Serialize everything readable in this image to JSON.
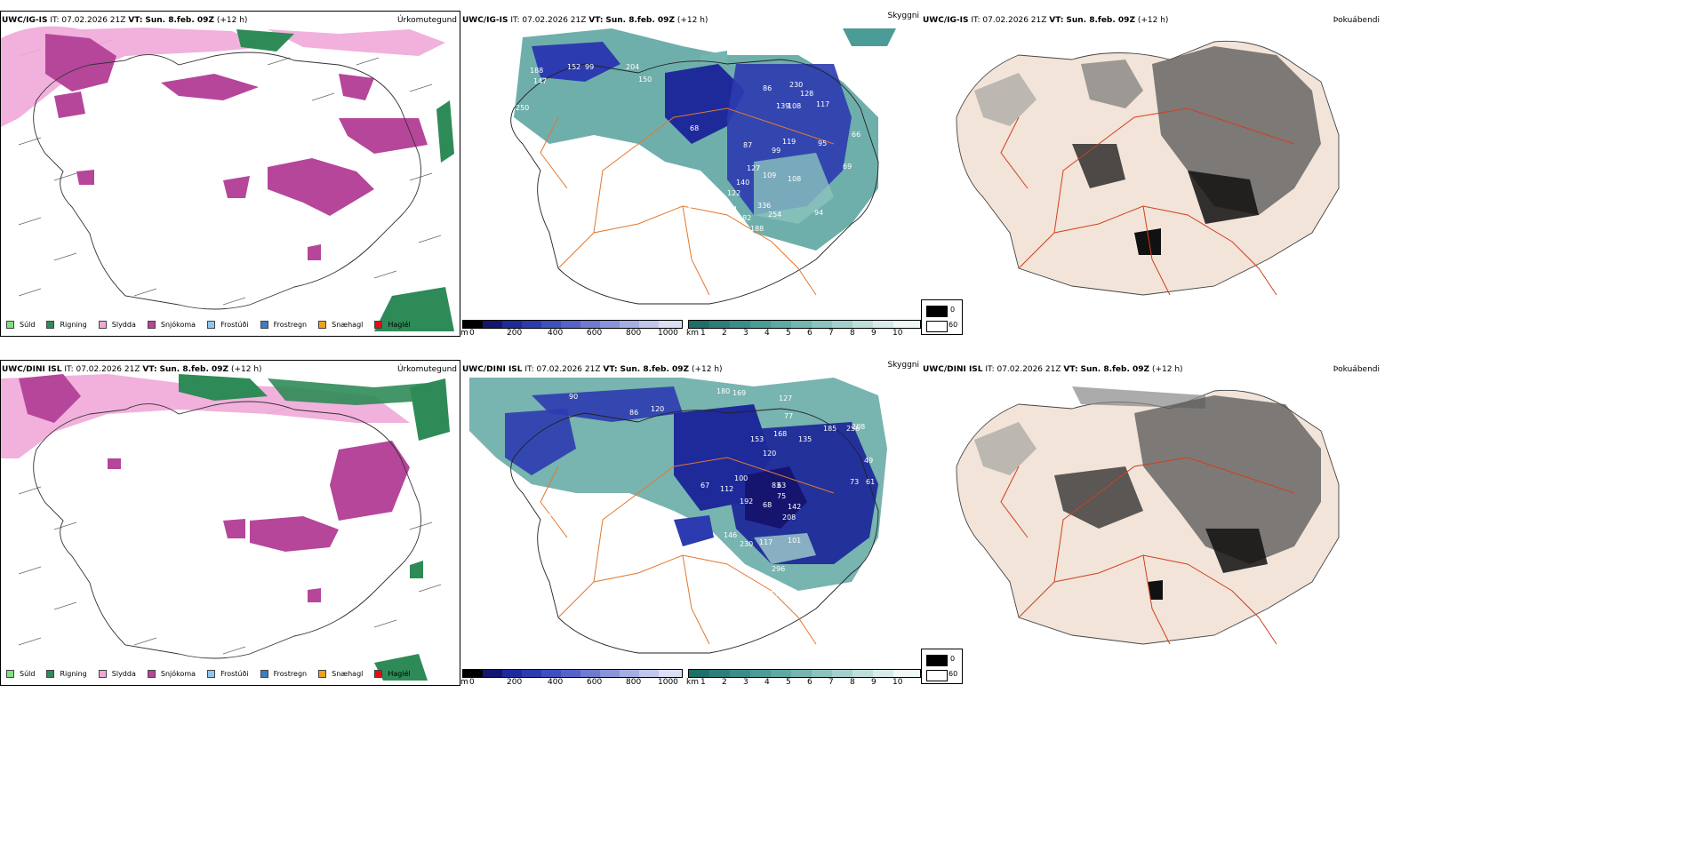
{
  "rows": [
    {
      "model": "UWC/IG-IS",
      "it_label": "IT:",
      "it_value": "07.02.2026 21Z",
      "vt_label": "VT:",
      "vt_value": "Sun. 8.feb. 09Z",
      "lead": "(+12 h)",
      "precip_title": "Úrkomutegund",
      "cloud_title": "Skyggni",
      "fog_title": "Þokuábendi"
    },
    {
      "model": "UWC/DINI ISL",
      "it_label": "IT:",
      "it_value": "07.02.2026 21Z",
      "vt_label": "VT:",
      "vt_value": "Sun. 8.feb. 09Z",
      "lead": "(+12 h)",
      "precip_title": "Úrkomutegund",
      "cloud_title": "Skyggni",
      "fog_title": "Þokuábendi"
    }
  ],
  "precip_legend": [
    {
      "label": "Súld",
      "color": "#7fe07f"
    },
    {
      "label": "Rigning",
      "color": "#2e8b57"
    },
    {
      "label": "Slydda",
      "color": "#f0a8d8"
    },
    {
      "label": "Snjókoma",
      "color": "#b5469a"
    },
    {
      "label": "Frostúði",
      "color": "#8fc6ef"
    },
    {
      "label": "Frostregn",
      "color": "#3a7fc8"
    },
    {
      "label": "Snæhagl",
      "color": "#f0a020"
    },
    {
      "label": "Haglél",
      "color": "#e01010"
    }
  ],
  "ceiling_scale": {
    "unit": "m",
    "ticks": [
      "0",
      "200",
      "400",
      "600",
      "800",
      "1000"
    ],
    "colors": [
      "#000000",
      "#151570",
      "#1f2a9a",
      "#2c3bb0",
      "#3e4fbe",
      "#5563c6",
      "#6e7bcf",
      "#8a94d8",
      "#a5aee2",
      "#c0c6ec",
      "#dadff5"
    ]
  },
  "visibility_scale": {
    "unit": "km",
    "ticks": [
      "1",
      "2",
      "3",
      "4",
      "5",
      "6",
      "7",
      "8",
      "9",
      "10"
    ],
    "colors": [
      "#1d6f6a",
      "#2b7e79",
      "#3a8d88",
      "#4b9b96",
      "#5fa8a3",
      "#74b5b0",
      "#8bc3be",
      "#a3d0cc",
      "#bddedb",
      "#d7ecea",
      "#f0f8f7"
    ]
  },
  "fog_scale": {
    "ticks": [
      "0",
      "60"
    ],
    "colors": [
      "#000000",
      "#ffffff"
    ]
  },
  "ceiling_labels_top": [
    "174",
    "204",
    "180",
    "152",
    "99",
    "188",
    "147",
    "256",
    "150",
    "250",
    "255",
    "63",
    "77",
    "86",
    "139",
    "230",
    "128",
    "108",
    "117",
    "80",
    "100",
    "68",
    "87",
    "97",
    "99",
    "119",
    "127",
    "140",
    "122",
    "109",
    "108",
    "69",
    "102",
    "120",
    "144",
    "182",
    "188",
    "336",
    "254",
    "95",
    "94",
    "99",
    "260",
    "142",
    "66",
    "69",
    "72"
  ],
  "ceiling_labels_bottom": [
    "90",
    "86",
    "120",
    "140",
    "180",
    "169",
    "127",
    "77",
    "168",
    "135",
    "185",
    "208",
    "153",
    "83",
    "120",
    "63",
    "75",
    "142",
    "109",
    "100",
    "112",
    "67",
    "192",
    "68",
    "208",
    "118",
    "142",
    "117",
    "101",
    "230",
    "146",
    "296",
    "175",
    "90",
    "76",
    "115",
    "116",
    "256",
    "49",
    "73",
    "61"
  ],
  "colors": {
    "snow": "#b5469a",
    "sleet": "#f0a8d8",
    "rain": "#2e8b57",
    "drizzle": "#7fe07f",
    "land_fog": "#f2e4d8",
    "road": "#e07830",
    "fog_road": "#d04020"
  }
}
